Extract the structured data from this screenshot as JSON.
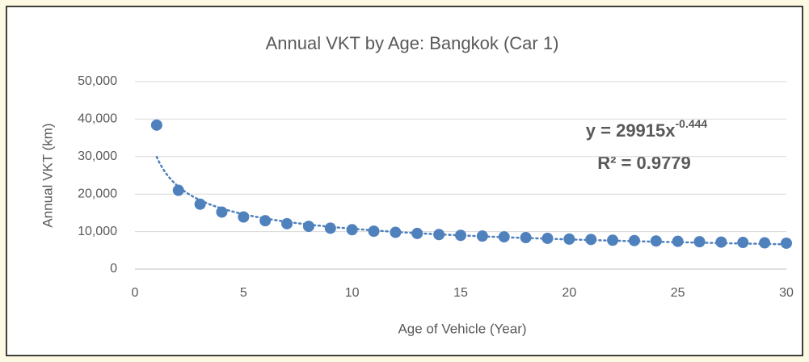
{
  "chart_data": {
    "type": "scatter",
    "title": "Annual VKT by Age: Bangkok (Car 1)",
    "x_label": "Age of Vehicle (Year)",
    "y_label": "Annual VKT (km)",
    "series": [
      {
        "name": "Annual VKT",
        "color": "#4f81bd",
        "x": [
          1,
          2,
          3,
          4,
          5,
          6,
          7,
          8,
          9,
          10,
          11,
          12,
          13,
          14,
          15,
          16,
          17,
          18,
          19,
          20,
          21,
          22,
          23,
          24,
          25,
          26,
          27,
          28,
          29,
          30
        ],
        "values": [
          38400,
          21000,
          17300,
          15200,
          13900,
          12900,
          12100,
          11400,
          10900,
          10500,
          10100,
          9800,
          9500,
          9200,
          9000,
          8800,
          8600,
          8400,
          8200,
          8000,
          7900,
          7700,
          7600,
          7500,
          7400,
          7300,
          7200,
          7100,
          7000,
          6900
        ]
      }
    ],
    "trendline": {
      "type": "power",
      "a": 29915,
      "b": -0.444,
      "label": "y = 29915x",
      "label_exponent": "-0.444",
      "r2_label": "R² = 0.9779"
    },
    "xlim": [
      0,
      30
    ],
    "xticks": [
      0,
      5,
      10,
      15,
      20,
      25,
      30
    ],
    "ylim": [
      0,
      50000
    ],
    "yticks": [
      0,
      {
        "value": 10000,
        "label": "10,000"
      },
      {
        "value": 20000,
        "label": "20,000"
      },
      {
        "value": 30000,
        "label": "30,000"
      },
      {
        "value": 40000,
        "label": "40,000"
      },
      {
        "value": 50000,
        "label": "50,000"
      }
    ],
    "grid": true
  }
}
